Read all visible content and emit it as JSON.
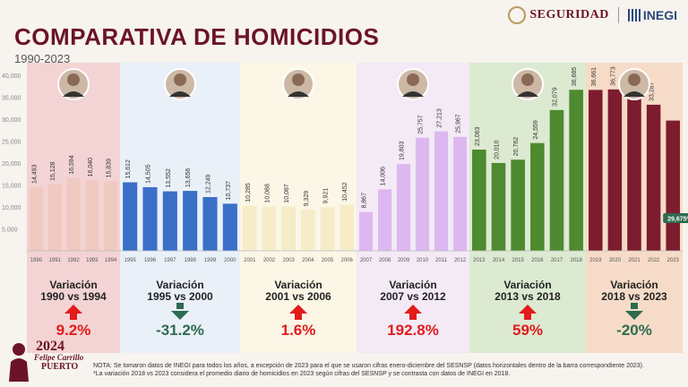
{
  "title": "COMPARATIVA DE HOMICIDIOS",
  "subtitle": "1990-2023",
  "logos": {
    "seguridad": "SEGURIDAD",
    "inegi": "INEGI"
  },
  "colors": {
    "title": "#6b1427",
    "up": "#e21b1b",
    "down": "#2e6b4f"
  },
  "chart_data": {
    "type": "bar",
    "ylim": [
      0,
      40000
    ],
    "yticks": [
      "5,000",
      "10,000",
      "15,000",
      "20,000",
      "25,000",
      "30,000",
      "35,000",
      "40,000"
    ],
    "periods": [
      {
        "years": [
          "1990",
          "1991",
          "1992",
          "1993",
          "1994"
        ],
        "values": [
          14493,
          15128,
          16594,
          16040,
          15839
        ],
        "labels": [
          "14,493",
          "15,128",
          "16,594",
          "16,040",
          "15,839"
        ],
        "bar": "#f0c9c0",
        "bg": "#f3d3d3"
      },
      {
        "years": [
          "1995",
          "1996",
          "1997",
          "1998",
          "1999",
          "2000"
        ],
        "values": [
          15612,
          14505,
          13552,
          13656,
          12249,
          10737
        ],
        "labels": [
          "15,612",
          "14,505",
          "13,552",
          "13,656",
          "12,249",
          "10,737"
        ],
        "bar": "#3a6fc8",
        "bg": "#eaf0f8"
      },
      {
        "years": [
          "2001",
          "2002",
          "2003",
          "2004",
          "2005",
          "2006"
        ],
        "values": [
          10285,
          10088,
          10087,
          9329,
          9921,
          10452
        ],
        "labels": [
          "10,285",
          "10,088",
          "10,087",
          "9,329",
          "9,921",
          "10,452"
        ],
        "bar": "#f6ecc8",
        "bg": "#fbf6e6"
      },
      {
        "years": [
          "2007",
          "2008",
          "2009",
          "2010",
          "2011",
          "2012"
        ],
        "values": [
          8867,
          14006,
          19803,
          25757,
          27213,
          25967
        ],
        "labels": [
          "8,867",
          "14,006",
          "19,803",
          "25,757",
          "27,213",
          "25,967"
        ],
        "bar": "#ddb8f0",
        "bg": "#f3eaf6"
      },
      {
        "years": [
          "2013",
          "2014",
          "2015",
          "2016",
          "2017",
          "2018"
        ],
        "values": [
          23063,
          20010,
          20762,
          24559,
          32079,
          36685
        ],
        "labels": [
          "23,063",
          "20,010",
          "20,762",
          "24,559",
          "32,079",
          "36,685"
        ],
        "bar": "#4e8a2f",
        "bg": "#dcead2"
      },
      {
        "years": [
          "2019",
          "2020",
          "2021",
          "2022",
          "2023"
        ],
        "values": [
          36661,
          36773,
          35700,
          33287,
          29675
        ],
        "labels": [
          "36,661",
          "36,773",
          "35,700",
          "33,287",
          "29,675*"
        ],
        "bar": "#7d1c2f",
        "bg": "#f6dcc8"
      }
    ]
  },
  "variations": [
    {
      "heading": "Variación\n1990 vs 1994",
      "pct": "9.2%",
      "dir": "up"
    },
    {
      "heading": "Variación\n1995 vs 2000",
      "pct": "-31.2%",
      "dir": "down"
    },
    {
      "heading": "Variación\n2001 vs 2006",
      "pct": "1.6%",
      "dir": "up"
    },
    {
      "heading": "Variación\n2007 vs 2012",
      "pct": "192.8%",
      "dir": "up"
    },
    {
      "heading": "Variación\n2013 vs 2018",
      "pct": "59%",
      "dir": "up"
    },
    {
      "heading": "Variación\n2018 vs 2023",
      "pct": "-20%",
      "dir": "down"
    }
  ],
  "notes": {
    "note1": "NOTA: Se tomaron datos de INEGI para todos los años, a excepción de 2023 para el que se usaron cifras enero-diciembre del SESNSP (datos horizontales dentro de la barra correspondiente 2023).",
    "note2": "*La variación 2018 vs 2023 considera el promedio diario de homicidios en 2023 según cifras del SESNSP y se contrasta con datos de INEGI en 2018."
  },
  "badge": {
    "year": "2024",
    "name": "Felipe Carrillo",
    "place": "PUERTO"
  }
}
